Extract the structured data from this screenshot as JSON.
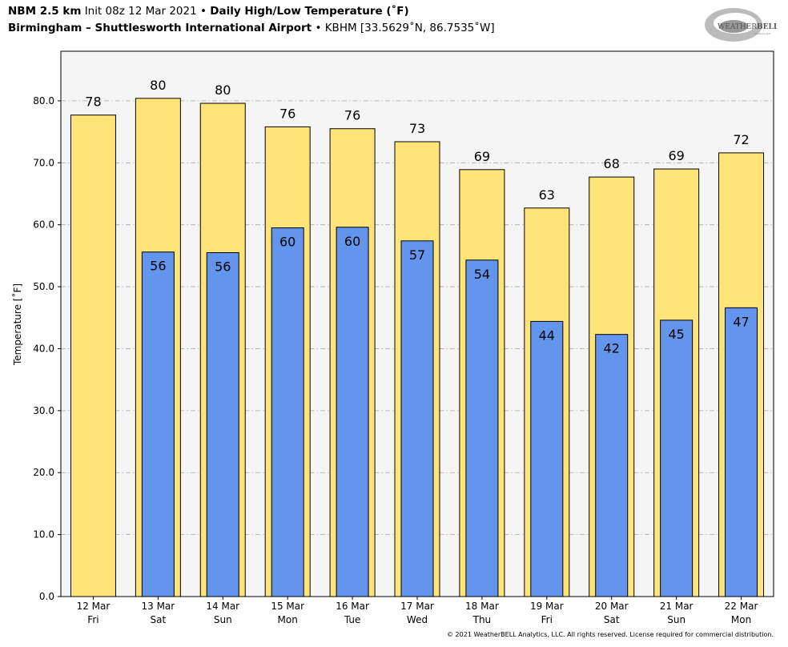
{
  "header": {
    "model": "NBM 2.5 km",
    "init": "Init 08z 12 Mar 2021",
    "product": "Daily High/Low Temperature (˚F)",
    "location": "Birmingham – Shuttlesworth International Airport",
    "station": "KBHM [33.5629˚N, 86.7535˚W]",
    "bullet": "•"
  },
  "logo": {
    "text_a": "WEATHER",
    "text_b": "BELL",
    "sub": "Analytics LLC"
  },
  "footer": {
    "copyright": "© 2021 WeatherBELL Analytics, LLC. All rights reserved. License required for commercial distribution."
  },
  "colors": {
    "high": "#FFE47A",
    "low": "#6495ED",
    "plot_bg": "#F5F5F5",
    "grid": "#AAAAAA"
  },
  "chart_data": {
    "type": "bar",
    "ylabel": "Temperature [˚F]",
    "ylim": [
      0,
      88
    ],
    "yticks": [
      "0.0",
      "10.0",
      "20.0",
      "30.0",
      "40.0",
      "50.0",
      "60.0",
      "70.0",
      "80.0"
    ],
    "grid": true,
    "categories": [
      [
        "12 Mar",
        "Fri"
      ],
      [
        "13 Mar",
        "Sat"
      ],
      [
        "14 Mar",
        "Sun"
      ],
      [
        "15 Mar",
        "Mon"
      ],
      [
        "16 Mar",
        "Tue"
      ],
      [
        "17 Mar",
        "Wed"
      ],
      [
        "18 Mar",
        "Thu"
      ],
      [
        "19 Mar",
        "Fri"
      ],
      [
        "20 Mar",
        "Sat"
      ],
      [
        "21 Mar",
        "Sun"
      ],
      [
        "22 Mar",
        "Mon"
      ]
    ],
    "series": [
      {
        "values": [
          77.7,
          80.4,
          79.6,
          75.8,
          75.5,
          73.4,
          68.9,
          62.7,
          67.7,
          69.0,
          71.6
        ],
        "labels": [
          "78",
          "80",
          "80",
          "76",
          "76",
          "73",
          "69",
          "63",
          "68",
          "69",
          "72"
        ]
      },
      {
        "values": [
          null,
          55.6,
          55.5,
          59.5,
          59.6,
          57.4,
          54.3,
          44.4,
          42.3,
          44.6,
          46.6
        ],
        "labels": [
          null,
          "56",
          "56",
          "60",
          "60",
          "57",
          "54",
          "44",
          "42",
          "45",
          "47"
        ]
      }
    ]
  }
}
